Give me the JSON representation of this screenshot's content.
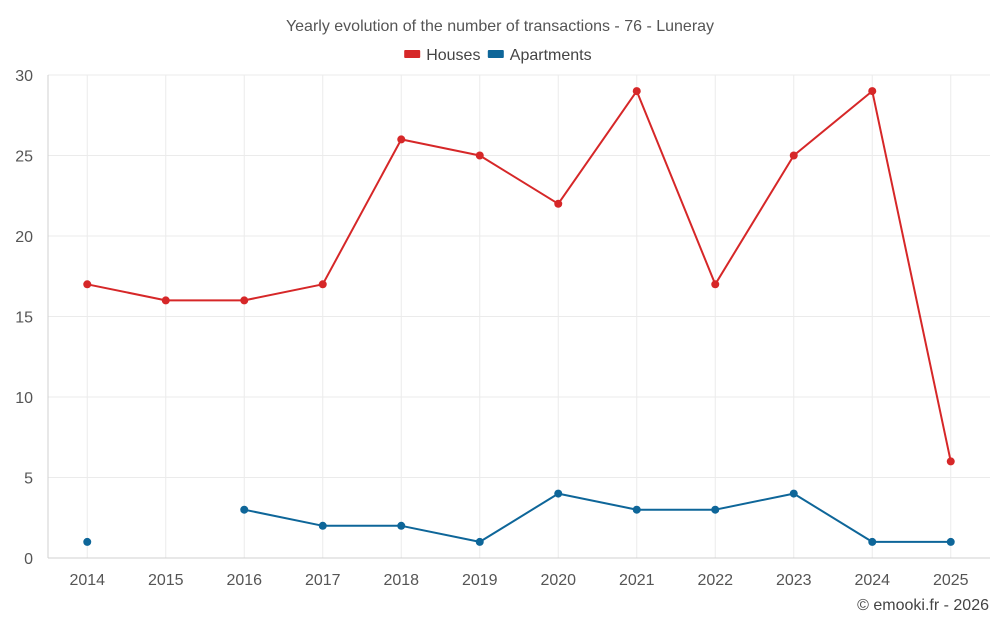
{
  "chart_data": {
    "type": "line",
    "title": "Yearly evolution of the number of transactions - 76 - Luneray",
    "xlabel": "",
    "ylabel": "",
    "categories": [
      "2014",
      "2015",
      "2016",
      "2017",
      "2018",
      "2019",
      "2020",
      "2021",
      "2022",
      "2023",
      "2024",
      "2025"
    ],
    "ylim": [
      0,
      30
    ],
    "yticks": [
      0,
      5,
      10,
      15,
      20,
      25,
      30
    ],
    "grid": true,
    "legend_position": "top-center",
    "series": [
      {
        "name": "Houses",
        "color": "#d62728",
        "values": [
          17,
          16,
          16,
          17,
          26,
          25,
          22,
          29,
          17,
          25,
          29,
          6
        ]
      },
      {
        "name": "Apartments",
        "color": "#0e6699",
        "values": [
          1,
          null,
          3,
          2,
          2,
          1,
          4,
          3,
          3,
          4,
          1,
          1
        ]
      }
    ]
  },
  "credit": "© emooki.fr - 2026"
}
